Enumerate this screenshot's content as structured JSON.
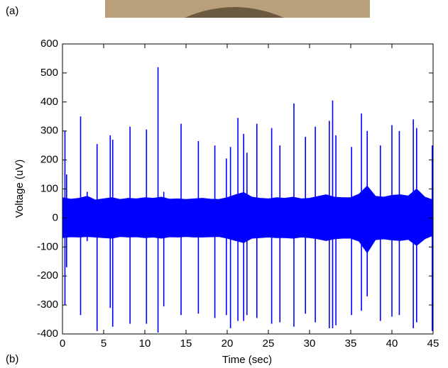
{
  "panel_a_label": "(a)",
  "panel_b_label": "(b)",
  "chart_data": {
    "type": "trace",
    "xlabel": "Time (sec)",
    "ylabel": "Voltage (uV)",
    "xlim": [
      0,
      45
    ],
    "ylim": [
      -400,
      600
    ],
    "xticks": [
      0,
      5,
      10,
      15,
      20,
      25,
      30,
      35,
      40,
      45
    ],
    "yticks": [
      -400,
      -300,
      -200,
      -100,
      0,
      100,
      200,
      300,
      400,
      500,
      600
    ],
    "color": "#0000ff",
    "x": [
      0,
      1,
      2,
      3,
      4,
      5,
      6,
      7,
      8,
      9,
      10,
      11,
      12,
      13,
      14,
      15,
      16,
      17,
      18,
      19,
      20,
      21,
      22,
      23,
      24,
      25,
      26,
      27,
      28,
      29,
      30,
      31,
      32,
      33,
      34,
      35,
      36,
      37,
      38,
      39,
      40,
      41,
      42,
      43,
      44,
      45
    ],
    "series": [
      {
        "color": "#0000ff",
        "values": [
          70,
          65,
          68,
          75,
          62,
          66,
          70,
          64,
          68,
          66,
          70,
          68,
          72,
          65,
          66,
          64,
          66,
          68,
          65,
          64,
          70,
          80,
          88,
          72,
          68,
          66,
          70,
          68,
          72,
          66,
          68,
          74,
          80,
          72,
          70,
          70,
          82,
          110,
          75,
          72,
          78,
          80,
          76,
          100,
          72,
          62
        ]
      },
      {
        "color": "#0000ff",
        "values": [
          -68,
          -65,
          -66,
          -64,
          -66,
          -68,
          -70,
          -64,
          -66,
          -65,
          -68,
          -66,
          -70,
          -65,
          -66,
          -64,
          -66,
          -66,
          -65,
          -64,
          -70,
          -78,
          -85,
          -70,
          -68,
          -66,
          -68,
          -68,
          -70,
          -66,
          -68,
          -72,
          -78,
          -72,
          -70,
          -70,
          -80,
          -120,
          -75,
          -72,
          -76,
          -78,
          -74,
          -95,
          -72,
          -60
        ]
      }
    ],
    "spikes": {
      "x": [
        0.3,
        0.5,
        2.2,
        3.0,
        4.2,
        5.8,
        6.1,
        8.2,
        10.2,
        11.6,
        12.3,
        14.4,
        16.5,
        18.5,
        19.9,
        20.4,
        21.3,
        22.0,
        22.4,
        23.6,
        25.4,
        26.4,
        28.1,
        29.5,
        30.7,
        32.4,
        32.8,
        33.2,
        35.1,
        36.3,
        37.0,
        38.6,
        40.0,
        40.9,
        42.6,
        43.0,
        44.9
      ],
      "max": [
        300,
        150,
        350,
        90,
        255,
        285,
        270,
        315,
        305,
        520,
        90,
        325,
        265,
        250,
        205,
        245,
        345,
        290,
        225,
        325,
        310,
        250,
        395,
        280,
        315,
        335,
        405,
        285,
        245,
        360,
        300,
        250,
        320,
        300,
        340,
        310,
        250
      ],
      "min": [
        -300,
        -170,
        -335,
        -80,
        -390,
        -310,
        -375,
        -365,
        -365,
        -395,
        -305,
        -335,
        -330,
        -345,
        -335,
        -380,
        -355,
        -355,
        -335,
        -345,
        -365,
        -360,
        -375,
        -330,
        -360,
        -380,
        -380,
        -370,
        -335,
        -320,
        -270,
        -355,
        -340,
        -335,
        -380,
        -360,
        -390
      ]
    }
  }
}
